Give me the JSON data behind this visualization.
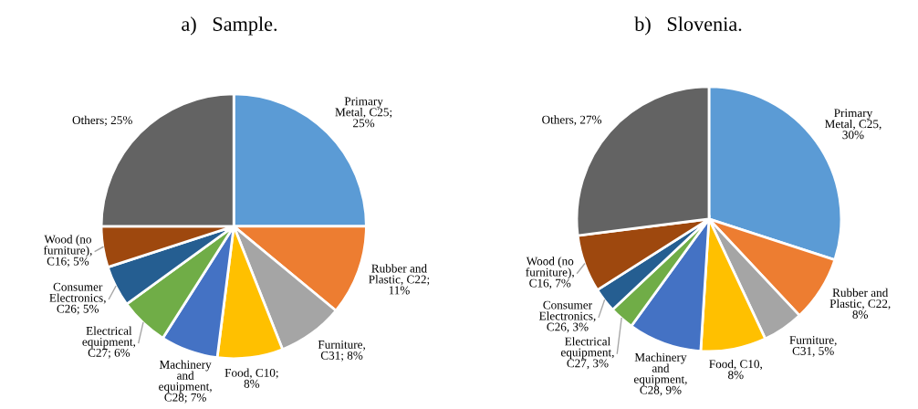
{
  "chart_data": [
    {
      "type": "pie",
      "title": "a)   Sample.",
      "categories": [
        "Primary\nMetal, C25;\n25%",
        "Rubber and\nPlastic, C22;\n11%",
        "Furniture,\nC31; 8%",
        "Food, C10;\n8%",
        "Machinery\nand\nequipment,\nC28; 7%",
        "Electrical\nequipment,\nC27; 6%",
        "Consumer\nElectronics,\nC26; 5%",
        "Wood (no\nfurniture),\nC16; 5%",
        "Others; 25%"
      ],
      "values": [
        25,
        11,
        8,
        8,
        7,
        6,
        5,
        5,
        25
      ],
      "colors": [
        "#5b9bd5",
        "#ed7d31",
        "#a5a5a5",
        "#ffc000",
        "#4472c4",
        "#70ad47",
        "#255e91",
        "#9e480e",
        "#636363"
      ]
    },
    {
      "type": "pie",
      "title": "b)   Slovenia.",
      "categories": [
        "Primary\nMetal, C25,\n30%",
        "Rubber and\nPlastic, C22,\n8%",
        "Furniture,\nC31, 5%",
        "Food, C10,\n8%",
        "Machinery\nand\nequipment,\nC28, 9%",
        "Electrical\nequipment,\nC27, 3%",
        "Consumer\nElectronics,\nC26, 3%",
        "Wood (no\nfurniture),\nC16, 7%",
        "Others, 27%"
      ],
      "values": [
        30,
        8,
        5,
        8,
        9,
        3,
        3,
        7,
        27
      ],
      "colors": [
        "#5b9bd5",
        "#ed7d31",
        "#a5a5a5",
        "#ffc000",
        "#4472c4",
        "#70ad47",
        "#255e91",
        "#9e480e",
        "#636363"
      ]
    }
  ]
}
